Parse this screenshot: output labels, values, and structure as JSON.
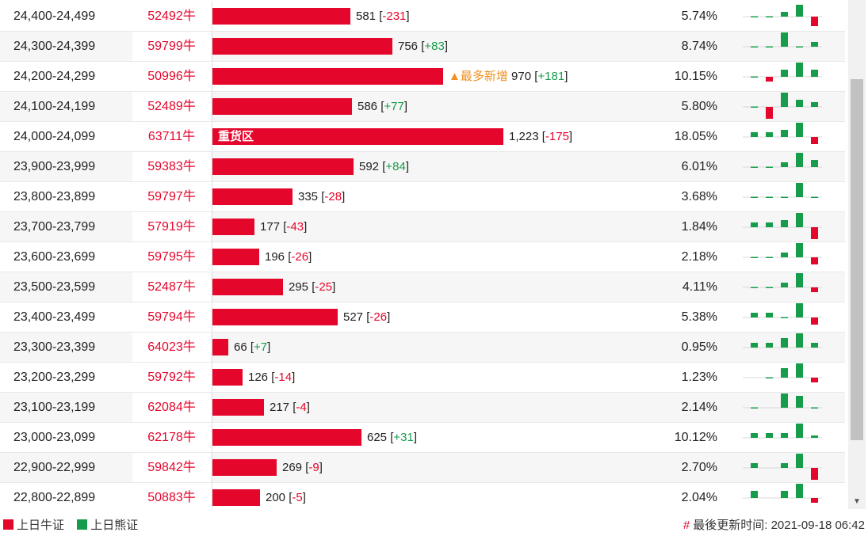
{
  "colors": {
    "bull": "#e5062c",
    "bear": "#179c4c",
    "flag": "#f0901c"
  },
  "rows": [
    {
      "range": "24,400-24,499",
      "code": "52492牛",
      "value": 581,
      "value_label": "581",
      "change": "-231",
      "pct": "5.74%",
      "spark": [
        -1,
        -1,
        2,
        5,
        -4
      ]
    },
    {
      "range": "24,300-24,399",
      "code": "59799牛",
      "value": 756,
      "value_label": "756",
      "change": "+83",
      "pct": "8.74%",
      "spark": [
        -1,
        -1,
        6,
        -1,
        2
      ]
    },
    {
      "range": "24,200-24,299",
      "code": "50996牛",
      "value": 970,
      "value_label": "970",
      "change": "+181",
      "pct": "10.15%",
      "spark": [
        -1,
        -2,
        3,
        6,
        3
      ],
      "flag": "▲最多新增"
    },
    {
      "range": "24,100-24,199",
      "code": "52489牛",
      "value": 586,
      "value_label": "586",
      "change": "+77",
      "pct": "5.80%",
      "spark": [
        -1,
        -5,
        6,
        3,
        2
      ]
    },
    {
      "range": "24,000-24,099",
      "code": "63711牛",
      "value": 1223,
      "value_label": "1,223",
      "change": "-175",
      "pct": "18.05%",
      "spark": [
        2,
        2,
        3,
        6,
        -3
      ],
      "inlabel": "重货区"
    },
    {
      "range": "23,900-23,999",
      "code": "59383牛",
      "value": 592,
      "value_label": "592",
      "change": "+84",
      "pct": "6.01%",
      "spark": [
        -1,
        -1,
        2,
        6,
        3
      ]
    },
    {
      "range": "23,800-23,899",
      "code": "59797牛",
      "value": 335,
      "value_label": "335",
      "change": "-28",
      "pct": "3.68%",
      "spark": [
        -1,
        -1,
        -1,
        6,
        -1
      ]
    },
    {
      "range": "23,700-23,799",
      "code": "57919牛",
      "value": 177,
      "value_label": "177",
      "change": "-43",
      "pct": "1.84%",
      "spark": [
        2,
        2,
        3,
        6,
        -5
      ]
    },
    {
      "range": "23,600-23,699",
      "code": "59795牛",
      "value": 196,
      "value_label": "196",
      "change": "-26",
      "pct": "2.18%",
      "spark": [
        -1,
        -1,
        2,
        6,
        -3
      ]
    },
    {
      "range": "23,500-23,599",
      "code": "52487牛",
      "value": 295,
      "value_label": "295",
      "change": "-25",
      "pct": "4.11%",
      "spark": [
        -1,
        -1,
        2,
        6,
        -2
      ]
    },
    {
      "range": "23,400-23,499",
      "code": "59794牛",
      "value": 527,
      "value_label": "527",
      "change": "-26",
      "pct": "5.38%",
      "spark": [
        2,
        2,
        -1,
        6,
        -3
      ]
    },
    {
      "range": "23,300-23,399",
      "code": "64023牛",
      "value": 66,
      "value_label": "66",
      "change": "+7",
      "pct": "0.95%",
      "spark": [
        2,
        2,
        4,
        6,
        2
      ]
    },
    {
      "range": "23,200-23,299",
      "code": "59792牛",
      "value": 126,
      "value_label": "126",
      "change": "-14",
      "pct": "1.23%",
      "spark": [
        0,
        -1,
        4,
        6,
        -2
      ]
    },
    {
      "range": "23,100-23,199",
      "code": "62084牛",
      "value": 217,
      "value_label": "217",
      "change": "-4",
      "pct": "2.14%",
      "spark": [
        -1,
        0,
        6,
        5,
        -1
      ]
    },
    {
      "range": "23,000-23,099",
      "code": "62178牛",
      "value": 625,
      "value_label": "625",
      "change": "+31",
      "pct": "10.12%",
      "spark": [
        2,
        2,
        2,
        6,
        1
      ]
    },
    {
      "range": "22,900-22,999",
      "code": "59842牛",
      "value": 269,
      "value_label": "269",
      "change": "-9",
      "pct": "2.70%",
      "spark": [
        2,
        0,
        2,
        6,
        -5
      ]
    },
    {
      "range": "22,800-22,899",
      "code": "50883牛",
      "value": 200,
      "value_label": "200",
      "change": "-5",
      "pct": "2.04%",
      "spark": [
        3,
        0,
        3,
        6,
        -2
      ]
    }
  ],
  "legend": {
    "bull": "上日牛证",
    "bear": "上日熊证"
  },
  "footer": {
    "hash": "#",
    "updated_label": "最後更新时间:",
    "updated_time": "2021-09-18 06:42"
  }
}
